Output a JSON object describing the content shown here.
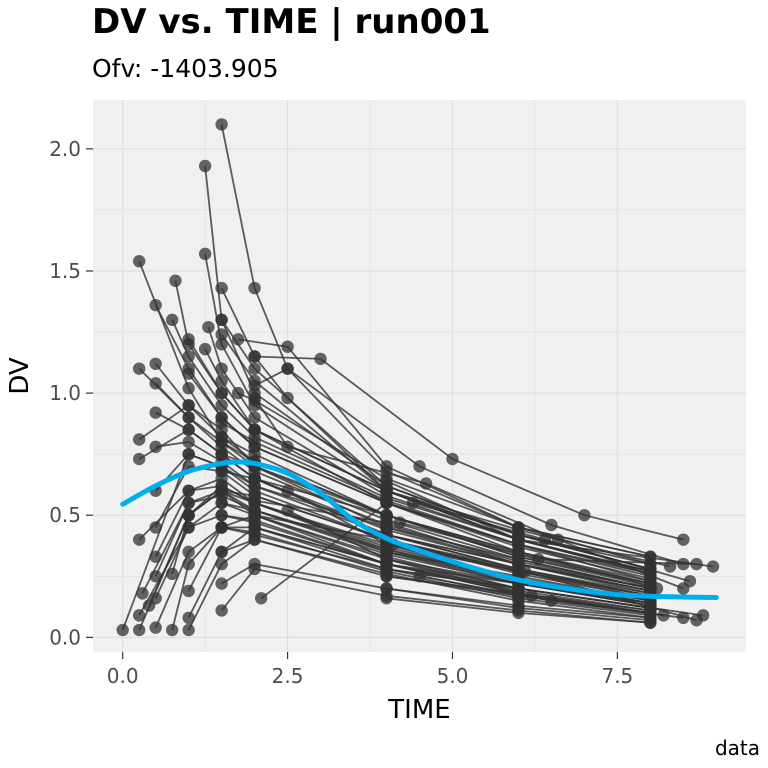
{
  "chart_data": {
    "type": "line",
    "title": "DV vs. TIME | run001",
    "subtitle": "Ofv: -1403.905",
    "caption": "data",
    "xlabel": "TIME",
    "ylabel": "DV",
    "xlim": [
      -0.45,
      9.45
    ],
    "ylim": [
      -0.06,
      2.2
    ],
    "xticks": [
      0,
      2.5,
      5,
      7.5
    ],
    "xtick_labels": [
      "0.0",
      "2.5",
      "5.0",
      "7.5"
    ],
    "yticks": [
      0,
      0.5,
      1,
      1.5,
      2
    ],
    "ytick_labels": [
      "0.0",
      "0.5",
      "1.0",
      "1.5",
      "2.0"
    ],
    "grid": true,
    "colors": {
      "panel": "#f0f0f0",
      "grid": "#dedede",
      "points": "#333333",
      "lines": "#333333",
      "smooth": "#00aeef"
    },
    "series": [
      {
        "x": [
          0,
          1.0,
          1.5,
          2,
          4,
          6,
          8
        ],
        "y": [
          0.03,
          0.75,
          0.7,
          0.62,
          0.45,
          0.3,
          0.19
        ]
      },
      {
        "x": [
          0.25,
          1.0,
          1.5,
          2,
          4,
          6,
          8
        ],
        "y": [
          1.54,
          1.02,
          0.8,
          0.72,
          0.5,
          0.33,
          0.22
        ]
      },
      {
        "x": [
          0.25,
          1.0,
          1.5,
          2,
          4,
          6,
          8
        ],
        "y": [
          1.1,
          0.9,
          0.8,
          0.7,
          0.5,
          0.35,
          0.23
        ]
      },
      {
        "x": [
          0.25,
          1.0,
          1.5,
          2,
          4,
          6,
          8
        ],
        "y": [
          0.81,
          0.95,
          0.85,
          0.7,
          0.48,
          0.32,
          0.2
        ]
      },
      {
        "x": [
          0.25,
          1.0,
          1.5,
          2,
          4,
          6,
          8
        ],
        "y": [
          0.73,
          0.85,
          0.75,
          0.65,
          0.42,
          0.28,
          0.17
        ]
      },
      {
        "x": [
          0.25,
          1.0,
          1.5,
          2,
          4,
          6,
          8
        ],
        "y": [
          0.4,
          0.6,
          0.65,
          0.55,
          0.38,
          0.24,
          0.15
        ]
      },
      {
        "x": [
          0.25,
          1.0,
          1.5,
          2,
          4,
          6,
          8
        ],
        "y": [
          0.03,
          0.5,
          0.6,
          0.5,
          0.32,
          0.2,
          0.12
        ]
      },
      {
        "x": [
          0.25,
          1.0,
          1.5,
          2,
          4,
          6,
          8
        ],
        "y": [
          0.09,
          0.45,
          0.55,
          0.5,
          0.3,
          0.18,
          0.11
        ]
      },
      {
        "x": [
          0.3,
          1.0,
          1.5,
          2,
          4,
          6,
          8
        ],
        "y": [
          0.18,
          0.55,
          0.6,
          0.52,
          0.36,
          0.23,
          0.14
        ]
      },
      {
        "x": [
          0.4,
          1.0,
          1.5,
          2,
          4,
          6,
          8
        ],
        "y": [
          0.13,
          0.5,
          0.62,
          0.55,
          0.35,
          0.22,
          0.13
        ]
      },
      {
        "x": [
          0.5,
          1.0,
          1.5,
          2,
          4,
          6,
          8
        ],
        "y": [
          1.36,
          1.1,
          0.9,
          0.78,
          0.55,
          0.38,
          0.25
        ]
      },
      {
        "x": [
          0.5,
          1.0,
          1.5,
          2,
          4,
          6,
          8
        ],
        "y": [
          1.12,
          0.95,
          0.82,
          0.72,
          0.5,
          0.34,
          0.22
        ]
      },
      {
        "x": [
          0.5,
          1.0,
          1.5,
          2,
          4,
          6,
          8
        ],
        "y": [
          1.04,
          0.9,
          0.78,
          0.68,
          0.46,
          0.31,
          0.2
        ]
      },
      {
        "x": [
          0.5,
          1.0,
          1.5,
          2,
          4,
          6,
          8
        ],
        "y": [
          0.92,
          0.85,
          0.75,
          0.65,
          0.44,
          0.3,
          0.19
        ]
      },
      {
        "x": [
          0.5,
          1.0,
          1.5,
          2,
          4,
          6,
          8
        ],
        "y": [
          0.78,
          0.8,
          0.72,
          0.62,
          0.42,
          0.28,
          0.18
        ]
      },
      {
        "x": [
          0.5,
          1.0,
          1.5,
          2,
          4,
          6,
          8
        ],
        "y": [
          0.6,
          0.75,
          0.7,
          0.6,
          0.4,
          0.27,
          0.17
        ]
      },
      {
        "x": [
          0.5,
          1.0,
          1.5,
          2,
          4,
          6,
          8
        ],
        "y": [
          0.45,
          0.7,
          0.68,
          0.58,
          0.4,
          0.26,
          0.16
        ]
      },
      {
        "x": [
          0.5,
          1.0,
          1.5,
          2,
          4,
          6,
          8
        ],
        "y": [
          0.33,
          0.6,
          0.62,
          0.55,
          0.37,
          0.24,
          0.15
        ]
      },
      {
        "x": [
          0.5,
          1.0,
          1.5,
          2,
          4,
          6,
          8
        ],
        "y": [
          0.25,
          0.55,
          0.58,
          0.52,
          0.34,
          0.22,
          0.13
        ]
      },
      {
        "x": [
          0.5,
          1.0,
          1.5,
          2,
          4,
          6,
          8
        ],
        "y": [
          0.16,
          0.45,
          0.5,
          0.47,
          0.3,
          0.19,
          0.11
        ]
      },
      {
        "x": [
          0.5,
          1.0,
          1.5,
          2,
          4,
          6,
          8
        ],
        "y": [
          0.04,
          0.35,
          0.45,
          0.42,
          0.28,
          0.17,
          0.1
        ]
      },
      {
        "x": [
          0.75,
          1.0,
          1.5,
          2,
          4,
          6,
          8
        ],
        "y": [
          1.3,
          1.15,
          0.95,
          0.82,
          0.57,
          0.4,
          0.27
        ]
      },
      {
        "x": [
          0.8,
          1.0,
          1.5,
          2,
          4,
          6,
          8
        ],
        "y": [
          1.46,
          1.2,
          1.0,
          0.85,
          0.6,
          0.42,
          0.28
        ]
      },
      {
        "x": [
          0.75,
          1.0,
          1.5,
          2,
          4,
          6,
          8
        ],
        "y": [
          0.26,
          0.5,
          0.6,
          0.55,
          0.36,
          0.24,
          0.14
        ]
      },
      {
        "x": [
          0.75,
          1.0,
          1.5,
          2,
          4,
          6,
          8
        ],
        "y": [
          0.03,
          0.3,
          0.45,
          0.43,
          0.27,
          0.16,
          0.09
        ]
      },
      {
        "x": [
          1.0,
          1.5,
          2,
          4,
          6,
          8
        ],
        "y": [
          1.22,
          1.0,
          0.85,
          0.6,
          0.42,
          0.3
        ]
      },
      {
        "x": [
          1.0,
          1.5,
          2,
          4,
          6,
          8
        ],
        "y": [
          1.08,
          0.9,
          0.78,
          0.55,
          0.38,
          0.26
        ]
      },
      {
        "x": [
          1.0,
          1.5,
          2,
          4,
          6,
          8
        ],
        "y": [
          0.03,
          0.3,
          0.4,
          0.26,
          0.15,
          0.08
        ]
      },
      {
        "x": [
          1.0,
          1.5,
          2,
          4,
          6,
          8
        ],
        "y": [
          0.08,
          0.35,
          0.45,
          0.3,
          0.18,
          0.1
        ]
      },
      {
        "x": [
          1.0,
          1.5,
          2,
          4,
          6,
          8
        ],
        "y": [
          0.19,
          0.45,
          0.5,
          0.33,
          0.2,
          0.12
        ]
      },
      {
        "x": [
          1.25,
          1.5,
          2,
          4,
          6,
          8
        ],
        "y": [
          1.93,
          1.3,
          1.0,
          0.62,
          0.42,
          0.28
        ]
      },
      {
        "x": [
          1.5,
          2.0,
          2.5,
          4,
          6,
          8
        ],
        "y": [
          2.1,
          1.43,
          1.1,
          0.68,
          0.45,
          0.3
        ]
      },
      {
        "x": [
          1.25,
          1.5,
          2,
          4,
          6,
          8
        ],
        "y": [
          1.57,
          1.2,
          0.95,
          0.6,
          0.4,
          0.27
        ]
      },
      {
        "x": [
          1.3,
          1.5,
          2,
          4,
          6,
          8
        ],
        "y": [
          1.27,
          1.1,
          0.9,
          0.58,
          0.4,
          0.26
        ]
      },
      {
        "x": [
          1.25,
          1.5,
          2,
          4,
          6,
          8
        ],
        "y": [
          1.18,
          1.05,
          0.85,
          0.55,
          0.37,
          0.24
        ]
      },
      {
        "x": [
          1.5,
          2,
          2.5,
          4,
          6,
          8
        ],
        "y": [
          1.43,
          1.15,
          0.98,
          0.6,
          0.4,
          0.27
        ]
      },
      {
        "x": [
          1.5,
          2,
          4,
          6,
          8
        ],
        "y": [
          1.3,
          1.1,
          0.62,
          0.42,
          0.28
        ]
      },
      {
        "x": [
          1.5,
          2,
          4,
          6,
          8
        ],
        "y": [
          1.24,
          1.05,
          0.6,
          0.4,
          0.26
        ]
      },
      {
        "x": [
          1.75,
          2.5,
          4,
          6,
          8
        ],
        "y": [
          1.22,
          1.19,
          0.7,
          0.45,
          0.33
        ]
      },
      {
        "x": [
          2.0,
          3.0,
          5.0,
          7.0,
          8.5
        ],
        "y": [
          1.15,
          1.14,
          0.73,
          0.5,
          0.4
        ]
      },
      {
        "x": [
          2.0,
          2.5,
          4.5,
          6.5,
          8.5
        ],
        "y": [
          1.03,
          1.1,
          0.7,
          0.46,
          0.3
        ]
      },
      {
        "x": [
          1.75,
          2.0,
          4.0,
          6.0,
          8.0
        ],
        "y": [
          1.0,
          0.97,
          0.65,
          0.45,
          0.33
        ]
      },
      {
        "x": [
          2.0,
          2.5,
          4.6,
          6.6,
          8.5
        ],
        "y": [
          0.98,
          0.78,
          0.63,
          0.4,
          0.2
        ]
      },
      {
        "x": [
          1.5,
          2.0,
          4.0,
          6.0,
          8.0
        ],
        "y": [
          0.88,
          0.8,
          0.56,
          0.38,
          0.23
        ]
      },
      {
        "x": [
          1.5,
          2.0,
          4.0,
          6.0,
          8.0
        ],
        "y": [
          0.82,
          0.75,
          0.5,
          0.35,
          0.22
        ]
      },
      {
        "x": [
          1.5,
          2.0,
          4.0,
          6.0,
          8.0
        ],
        "y": [
          0.75,
          0.7,
          0.45,
          0.32,
          0.2
        ]
      },
      {
        "x": [
          1.5,
          2.0,
          4.0,
          6.0,
          8.0
        ],
        "y": [
          0.68,
          0.65,
          0.42,
          0.3,
          0.18
        ]
      },
      {
        "x": [
          1.5,
          2.0,
          4.0,
          6.0,
          8.0
        ],
        "y": [
          0.6,
          0.58,
          0.4,
          0.28,
          0.17
        ]
      },
      {
        "x": [
          1.5,
          2.0,
          4.0,
          6.0,
          8.0
        ],
        "y": [
          0.55,
          0.52,
          0.35,
          0.25,
          0.15
        ]
      },
      {
        "x": [
          1.5,
          2.0,
          4.0,
          6.0,
          8.0
        ],
        "y": [
          0.5,
          0.48,
          0.3,
          0.22,
          0.13
        ]
      },
      {
        "x": [
          1.5,
          2.0,
          4.0,
          6.0,
          8.0
        ],
        "y": [
          0.45,
          0.45,
          0.28,
          0.2,
          0.12
        ]
      },
      {
        "x": [
          1.5,
          2.0,
          4.0,
          6.0,
          8.0
        ],
        "y": [
          0.35,
          0.4,
          0.25,
          0.17,
          0.1
        ]
      },
      {
        "x": [
          1.5,
          2.0,
          4.0,
          6.0,
          8.0
        ],
        "y": [
          0.22,
          0.3,
          0.2,
          0.13,
          0.08
        ]
      },
      {
        "x": [
          1.5,
          2.0,
          4.0,
          6.0,
          8.0
        ],
        "y": [
          0.11,
          0.28,
          0.17,
          0.11,
          0.06
        ]
      },
      {
        "x": [
          2.1,
          4.0,
          6.0,
          8.0
        ],
        "y": [
          0.16,
          0.55,
          0.35,
          0.21
        ]
      },
      {
        "x": [
          2.0,
          4.0,
          6.0,
          8.0
        ],
        "y": [
          0.65,
          0.5,
          0.33,
          0.21
        ]
      },
      {
        "x": [
          2.0,
          4.0,
          6.0,
          8.0
        ],
        "y": [
          0.56,
          0.47,
          0.3,
          0.19
        ]
      },
      {
        "x": [
          2.0,
          4.0,
          6.0,
          8.0
        ],
        "y": [
          0.5,
          0.4,
          0.27,
          0.17
        ]
      },
      {
        "x": [
          2.5,
          4.0,
          6.0,
          8.0
        ],
        "y": [
          0.6,
          0.38,
          0.27,
          0.16
        ]
      },
      {
        "x": [
          2.5,
          4.0,
          6.0,
          8.0
        ],
        "y": [
          0.52,
          0.32,
          0.22,
          0.14
        ]
      },
      {
        "x": [
          2.0,
          4.0,
          6.0,
          8.0
        ],
        "y": [
          0.45,
          0.3,
          0.2,
          0.12
        ]
      },
      {
        "x": [
          4.0,
          6.0,
          8.0
        ],
        "y": [
          0.2,
          0.12,
          0.07
        ]
      },
      {
        "x": [
          4.5,
          6.5,
          8.5
        ],
        "y": [
          0.25,
          0.15,
          0.08
        ]
      },
      {
        "x": [
          4.0,
          6.0,
          8.0
        ],
        "y": [
          0.16,
          0.1,
          0.06
        ]
      },
      {
        "x": [
          4.0,
          6.2,
          8.2
        ],
        "y": [
          0.32,
          0.17,
          0.09
        ]
      },
      {
        "x": [
          4.0,
          6.0,
          8.8
        ],
        "y": [
          0.28,
          0.2,
          0.09
        ]
      },
      {
        "x": [
          4.1,
          6.1,
          8.7
        ],
        "y": [
          0.38,
          0.27,
          0.07
        ]
      },
      {
        "x": [
          4.0,
          6.0,
          8.1
        ],
        "y": [
          0.42,
          0.3,
          0.2
        ]
      },
      {
        "x": [
          4.0,
          6.0,
          8.3
        ],
        "y": [
          0.6,
          0.44,
          0.29
        ]
      },
      {
        "x": [
          4.4,
          6.4,
          8.6
        ],
        "y": [
          0.55,
          0.4,
          0.23
        ]
      },
      {
        "x": [
          4.2,
          6.3,
          8.7
        ],
        "y": [
          0.47,
          0.32,
          0.3
        ]
      },
      {
        "x": [
          4.0,
          6.0,
          8.95
        ],
        "y": [
          0.64,
          0.4,
          0.29
        ]
      },
      {
        "x": [
          4.0,
          6.0,
          8.0
        ],
        "y": [
          0.35,
          0.23,
          0.14
        ]
      },
      {
        "x": [
          4.0,
          6.0,
          8.0
        ],
        "y": [
          0.25,
          0.18,
          0.1
        ]
      }
    ],
    "smooth": {
      "x": [
        0,
        0.5,
        1.0,
        1.5,
        1.75,
        2.0,
        2.5,
        3.0,
        3.5,
        4.0,
        4.5,
        5.0,
        5.5,
        6.0,
        6.5,
        7.0,
        7.5,
        8.0,
        8.5,
        9.0
      ],
      "y": [
        0.545,
        0.62,
        0.68,
        0.712,
        0.718,
        0.712,
        0.672,
        0.59,
        0.48,
        0.405,
        0.355,
        0.31,
        0.27,
        0.235,
        0.21,
        0.19,
        0.175,
        0.168,
        0.165,
        0.163
      ]
    }
  }
}
